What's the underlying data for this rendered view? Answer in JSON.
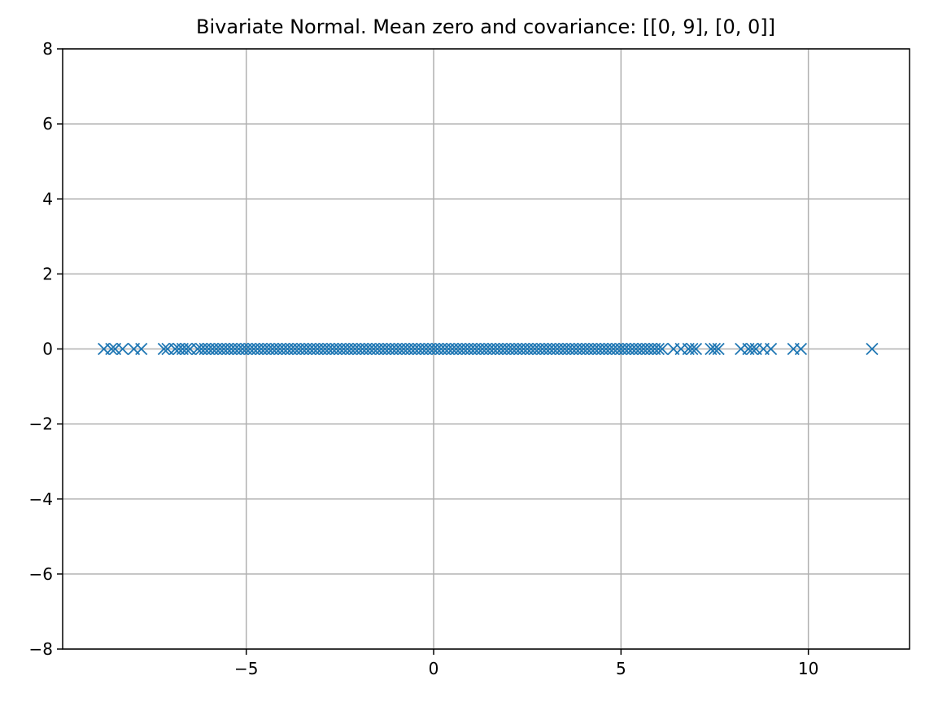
{
  "chart_data": {
    "type": "scatter",
    "title": "Bivariate Normal. Mean zero and covariance: [[0, 9], [0, 0]]",
    "xlabel": "",
    "ylabel": "",
    "xlim": [
      -9.9,
      12.7
    ],
    "ylim": [
      -8,
      8
    ],
    "grid": true,
    "marker": "x",
    "color": "#1f77b4",
    "x_ticks": [
      {
        "value": -5,
        "label": "−5"
      },
      {
        "value": 0,
        "label": "0"
      },
      {
        "value": 5,
        "label": "5"
      },
      {
        "value": 10,
        "label": "10"
      }
    ],
    "y_ticks": [
      {
        "value": -8,
        "label": "−8"
      },
      {
        "value": -6,
        "label": "−6"
      },
      {
        "value": -4,
        "label": "−4"
      },
      {
        "value": -2,
        "label": "−2"
      },
      {
        "value": 0,
        "label": "0"
      },
      {
        "value": 2,
        "label": "2"
      },
      {
        "value": 4,
        "label": "4"
      },
      {
        "value": 6,
        "label": "6"
      },
      {
        "value": 8,
        "label": "8"
      }
    ],
    "series": [
      {
        "x": [
          -8.8,
          -8.6,
          -8.5,
          -8.3,
          -8.0,
          -7.8,
          -7.2,
          -7.1,
          -6.9,
          -6.8,
          -6.7,
          -6.6,
          -6.5,
          -6.3,
          -6.2,
          -6.1,
          -6.0,
          -5.9,
          -5.8,
          -5.7,
          -5.6,
          -5.5,
          -5.4,
          -5.3,
          -5.2,
          -5.1,
          -5.0,
          -4.9,
          -4.8,
          -4.7,
          -4.6,
          -4.5,
          -4.4,
          -4.3,
          -4.2,
          -4.1,
          -4.0,
          -3.9,
          -3.8,
          -3.7,
          -3.6,
          -3.5,
          -3.4,
          -3.3,
          -3.2,
          -3.1,
          -3.0,
          -2.9,
          -2.8,
          -2.7,
          -2.6,
          -2.5,
          -2.4,
          -2.3,
          -2.2,
          -2.1,
          -2.0,
          -1.9,
          -1.8,
          -1.7,
          -1.6,
          -1.5,
          -1.4,
          -1.3,
          -1.2,
          -1.1,
          -1.0,
          -0.9,
          -0.8,
          -0.7,
          -0.6,
          -0.5,
          -0.4,
          -0.3,
          -0.2,
          -0.1,
          0.0,
          0.1,
          0.2,
          0.3,
          0.4,
          0.5,
          0.6,
          0.7,
          0.8,
          0.9,
          1.0,
          1.1,
          1.2,
          1.3,
          1.4,
          1.5,
          1.6,
          1.7,
          1.8,
          1.9,
          2.0,
          2.1,
          2.2,
          2.3,
          2.4,
          2.5,
          2.6,
          2.7,
          2.8,
          2.9,
          3.0,
          3.1,
          3.2,
          3.3,
          3.4,
          3.5,
          3.6,
          3.7,
          3.8,
          3.9,
          4.0,
          4.1,
          4.2,
          4.3,
          4.4,
          4.5,
          4.6,
          4.7,
          4.8,
          4.9,
          5.0,
          5.1,
          5.2,
          5.3,
          5.4,
          5.5,
          5.6,
          5.7,
          5.8,
          5.9,
          6.0,
          6.1,
          6.4,
          6.6,
          6.8,
          6.9,
          7.0,
          7.4,
          7.5,
          7.6,
          8.2,
          8.4,
          8.5,
          8.6,
          8.8,
          9.0,
          9.6,
          9.8,
          11.7
        ],
        "y": [
          0,
          0,
          0,
          0,
          0,
          0,
          0,
          0,
          0,
          0,
          0,
          0,
          0,
          0,
          0,
          0,
          0,
          0,
          0,
          0,
          0,
          0,
          0,
          0,
          0,
          0,
          0,
          0,
          0,
          0,
          0,
          0,
          0,
          0,
          0,
          0,
          0,
          0,
          0,
          0,
          0,
          0,
          0,
          0,
          0,
          0,
          0,
          0,
          0,
          0,
          0,
          0,
          0,
          0,
          0,
          0,
          0,
          0,
          0,
          0,
          0,
          0,
          0,
          0,
          0,
          0,
          0,
          0,
          0,
          0,
          0,
          0,
          0,
          0,
          0,
          0,
          0,
          0,
          0,
          0,
          0,
          0,
          0,
          0,
          0,
          0,
          0,
          0,
          0,
          0,
          0,
          0,
          0,
          0,
          0,
          0,
          0,
          0,
          0,
          0,
          0,
          0,
          0,
          0,
          0,
          0,
          0,
          0,
          0,
          0,
          0,
          0,
          0,
          0,
          0,
          0,
          0,
          0,
          0,
          0,
          0,
          0,
          0,
          0,
          0,
          0,
          0,
          0,
          0,
          0,
          0,
          0,
          0,
          0,
          0,
          0,
          0,
          0,
          0,
          0,
          0,
          0,
          0,
          0,
          0,
          0,
          0,
          0,
          0,
          0,
          0,
          0,
          0,
          0,
          0
        ]
      }
    ]
  }
}
